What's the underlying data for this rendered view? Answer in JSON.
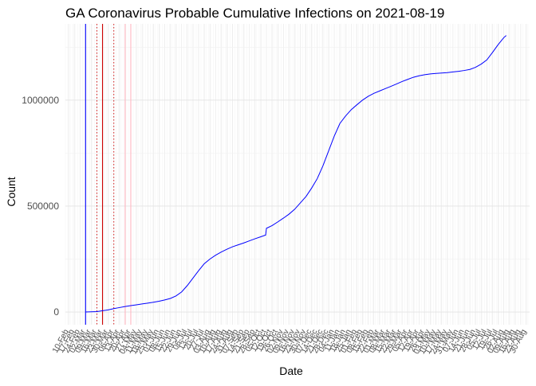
{
  "chart_data": {
    "type": "line",
    "title": "GA Coronavirus Probable Cumulative Infections on 2021-08-19",
    "xlabel": "Date",
    "ylabel": "Count",
    "x_range": [
      "2020-02-06",
      "2021-09-03"
    ],
    "ylim": [
      -60000,
      1360000
    ],
    "y_ticks": [
      0,
      500000,
      1000000
    ],
    "y_tick_labels": [
      "0",
      "500000",
      "1000000"
    ],
    "x_tick_labels": [
      "10-Feb",
      "17-Feb",
      "24-Feb",
      "02-Mar",
      "09-Mar",
      "16-Mar",
      "23-Mar",
      "30-Mar",
      "06-Apr",
      "13-Apr",
      "20-Apr",
      "27-Apr",
      "04-May",
      "11-May",
      "18-May",
      "25-May",
      "01-Jun",
      "08-Jun",
      "15-Jun",
      "22-Jun",
      "29-Jun",
      "06-Jul",
      "13-Jul",
      "20-Jul",
      "27-Jul",
      "03-Aug",
      "10-Aug",
      "17-Aug",
      "24-Aug",
      "31-Aug",
      "07-Sep",
      "14-Sep",
      "21-Sep",
      "28-Sep",
      "05-Oct",
      "12-Oct",
      "19-Oct",
      "26-Oct",
      "02-Nov",
      "09-Nov",
      "16-Nov",
      "23-Nov",
      "30-Nov",
      "07-Dec",
      "14-Dec",
      "21-Dec",
      "28-Dec",
      "04-Jan",
      "11-Jan",
      "18-Jan",
      "25-Jan",
      "01-Feb",
      "08-Feb",
      "15-Feb",
      "22-Feb",
      "01-Mar",
      "08-Mar",
      "15-Mar",
      "22-Mar",
      "29-Mar",
      "05-Apr",
      "12-Apr",
      "19-Apr",
      "26-Apr",
      "03-May",
      "10-May",
      "17-May",
      "24-May",
      "31-May",
      "07-Jun",
      "14-Jun",
      "21-Jun",
      "28-Jun",
      "05-Jul",
      "12-Jul",
      "19-Jul",
      "26-Jul",
      "02-Aug",
      "09-Aug",
      "16-Aug",
      "23-Aug",
      "30-Aug"
    ],
    "series": [
      {
        "name": "Probable cumulative infections",
        "color": "#0000ff",
        "points": [
          [
            "2020-03-02",
            0
          ],
          [
            "2020-03-16",
            2000
          ],
          [
            "2020-03-30",
            10000
          ],
          [
            "2020-04-06",
            16000
          ],
          [
            "2020-04-13",
            21000
          ],
          [
            "2020-04-20",
            26000
          ],
          [
            "2020-04-27",
            30000
          ],
          [
            "2020-05-04",
            34000
          ],
          [
            "2020-05-11",
            38000
          ],
          [
            "2020-05-18",
            42000
          ],
          [
            "2020-05-25",
            46000
          ],
          [
            "2020-06-01",
            51000
          ],
          [
            "2020-06-08",
            57000
          ],
          [
            "2020-06-15",
            64000
          ],
          [
            "2020-06-22",
            76000
          ],
          [
            "2020-06-29",
            95000
          ],
          [
            "2020-07-06",
            125000
          ],
          [
            "2020-07-13",
            160000
          ],
          [
            "2020-07-20",
            195000
          ],
          [
            "2020-07-27",
            228000
          ],
          [
            "2020-08-03",
            250000
          ],
          [
            "2020-08-10",
            268000
          ],
          [
            "2020-08-17",
            283000
          ],
          [
            "2020-08-24",
            296000
          ],
          [
            "2020-08-31",
            308000
          ],
          [
            "2020-09-07",
            317000
          ],
          [
            "2020-09-14",
            326000
          ],
          [
            "2020-09-21",
            336000
          ],
          [
            "2020-09-28",
            346000
          ],
          [
            "2020-10-05",
            355000
          ],
          [
            "2020-10-11",
            363000
          ],
          [
            "2020-10-12",
            395000
          ],
          [
            "2020-10-19",
            408000
          ],
          [
            "2020-10-26",
            425000
          ],
          [
            "2020-11-02",
            443000
          ],
          [
            "2020-11-09",
            462000
          ],
          [
            "2020-11-16",
            485000
          ],
          [
            "2020-11-23",
            515000
          ],
          [
            "2020-11-30",
            545000
          ],
          [
            "2020-12-07",
            585000
          ],
          [
            "2020-12-14",
            630000
          ],
          [
            "2020-12-21",
            690000
          ],
          [
            "2020-12-28",
            760000
          ],
          [
            "2021-01-04",
            830000
          ],
          [
            "2021-01-11",
            890000
          ],
          [
            "2021-01-18",
            925000
          ],
          [
            "2021-01-25",
            955000
          ],
          [
            "2021-02-01",
            978000
          ],
          [
            "2021-02-08",
            1000000
          ],
          [
            "2021-02-15",
            1018000
          ],
          [
            "2021-02-22",
            1032000
          ],
          [
            "2021-03-01",
            1043000
          ],
          [
            "2021-03-08",
            1054000
          ],
          [
            "2021-03-15",
            1065000
          ],
          [
            "2021-03-22",
            1076000
          ],
          [
            "2021-03-29",
            1088000
          ],
          [
            "2021-04-05",
            1098000
          ],
          [
            "2021-04-12",
            1108000
          ],
          [
            "2021-04-19",
            1115000
          ],
          [
            "2021-04-26",
            1120000
          ],
          [
            "2021-05-03",
            1124000
          ],
          [
            "2021-05-10",
            1126000
          ],
          [
            "2021-05-17",
            1128000
          ],
          [
            "2021-05-24",
            1130000
          ],
          [
            "2021-05-31",
            1133000
          ],
          [
            "2021-06-07",
            1136000
          ],
          [
            "2021-06-14",
            1140000
          ],
          [
            "2021-06-21",
            1145000
          ],
          [
            "2021-06-28",
            1155000
          ],
          [
            "2021-07-05",
            1170000
          ],
          [
            "2021-07-12",
            1190000
          ],
          [
            "2021-07-19",
            1225000
          ],
          [
            "2021-07-26",
            1262000
          ],
          [
            "2021-08-02",
            1295000
          ],
          [
            "2021-08-05",
            1305000
          ]
        ]
      }
    ],
    "vertical_lines": [
      {
        "name": "blue-vline",
        "date": "2020-03-02",
        "color": "#0000ff",
        "style": "solid"
      },
      {
        "name": "red-dotted-vline-1",
        "date": "2020-03-16",
        "color": "#cc0000",
        "style": "dotted"
      },
      {
        "name": "red-solid-vline",
        "date": "2020-03-23",
        "color": "#cc0000",
        "style": "solid"
      },
      {
        "name": "red-dotted-vline-2",
        "date": "2020-04-06",
        "color": "#cc0000",
        "style": "dotted"
      },
      {
        "name": "pink-vline-1",
        "date": "2020-04-20",
        "color": "#ffb6c1",
        "style": "solid"
      },
      {
        "name": "pink-vline-2",
        "date": "2020-04-27",
        "color": "#ffb6c1",
        "style": "solid"
      }
    ]
  }
}
